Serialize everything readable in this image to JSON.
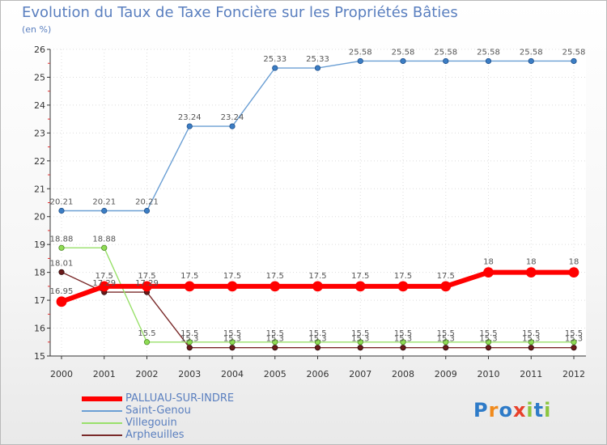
{
  "chart_data": {
    "type": "line",
    "title": "Evolution du Taux de Taxe Foncière sur les Propriétés Bâties",
    "ylabel": "(en %)",
    "ylim": [
      15,
      26
    ],
    "yticks": [
      "15",
      "16",
      "17",
      "18",
      "19",
      "20",
      "21",
      "22",
      "23",
      "24",
      "25",
      "26"
    ],
    "categories": [
      "2000",
      "2001",
      "2002",
      "2003",
      "2004",
      "2005",
      "2006",
      "2007",
      "2008",
      "2009",
      "2010",
      "2011",
      "2012"
    ],
    "series": [
      {
        "name": "PALLUAU-SUR-INDRE",
        "color": "#ff0000",
        "values": [
          16.95,
          17.5,
          17.5,
          17.5,
          17.5,
          17.5,
          17.5,
          17.5,
          17.5,
          17.5,
          18,
          18,
          18
        ],
        "labels": [
          "16.95",
          "17.5",
          "17.5",
          "17.5",
          "17.5",
          "17.5",
          "17.5",
          "17.5",
          "17.5",
          "17.5",
          "18",
          "18",
          "18"
        ]
      },
      {
        "name": "Saint-Genou",
        "color": "#6b9fd4",
        "values": [
          20.21,
          20.21,
          20.21,
          23.24,
          23.24,
          25.33,
          25.33,
          25.58,
          25.58,
          25.58,
          25.58,
          25.58,
          25.58
        ],
        "labels": [
          "20.21",
          "20.21",
          "20.21",
          "23.24",
          "23.24",
          "25.33",
          "25.33",
          "25.58",
          "25.58",
          "25.58",
          "25.58",
          "25.58",
          "25.58"
        ]
      },
      {
        "name": "Villegouin",
        "color": "#99e06b",
        "values": [
          18.88,
          18.88,
          15.5,
          15.5,
          15.5,
          15.5,
          15.5,
          15.5,
          15.5,
          15.5,
          15.5,
          15.5,
          15.5
        ],
        "labels": [
          "18.88",
          "18.88",
          "15.5",
          "15.5",
          "15.5",
          "15.5",
          "15.5",
          "15.5",
          "15.5",
          "15.5",
          "15.5",
          "15.5",
          "15.5"
        ]
      },
      {
        "name": "Arpheuilles",
        "color": "#7a2a2a",
        "values": [
          18.01,
          17.29,
          17.29,
          15.3,
          15.3,
          15.3,
          15.3,
          15.3,
          15.3,
          15.3,
          15.3,
          15.3,
          15.3
        ],
        "labels": [
          "18.01",
          "17.29",
          "17.29",
          "15.3",
          "15.3",
          "15.3",
          "15.3",
          "15.3",
          "15.3",
          "15.3",
          "15.3",
          "15.3",
          "15.3"
        ]
      }
    ]
  },
  "logo": {
    "letters": [
      "P",
      "r",
      "o",
      "x",
      "i",
      "t",
      "i"
    ],
    "colors": [
      "#2e7bc8",
      "#f08a1c",
      "#2e7bc8",
      "#e8402a",
      "#8cc63f",
      "#2e7bc8",
      "#8cc63f"
    ]
  }
}
